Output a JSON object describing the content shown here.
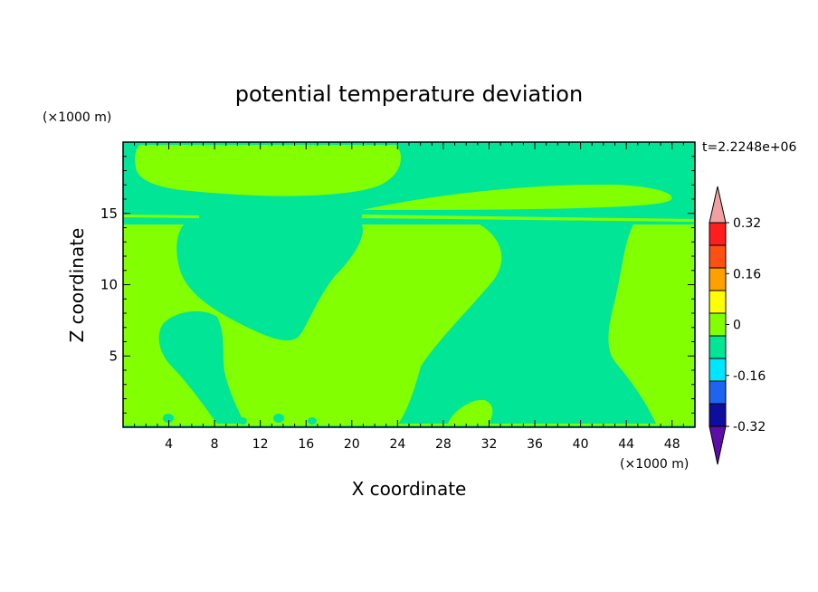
{
  "chart_data": {
    "type": "heatmap",
    "title": "potential temperature deviation",
    "time_label": "t=2.2248e+06",
    "xlabel": "X coordinate",
    "ylabel": "Z coordinate",
    "x_unit": "(×1000 m)",
    "y_unit": "(×1000 m)",
    "xlim": [
      0,
      50
    ],
    "ylim": [
      0,
      20
    ],
    "x_ticks": [
      4,
      8,
      12,
      16,
      20,
      24,
      28,
      32,
      36,
      40,
      44,
      48
    ],
    "y_ticks": [
      5,
      10,
      15
    ],
    "colorbar": {
      "levels": [
        -0.4,
        -0.32,
        -0.24,
        -0.16,
        -0.08,
        0,
        0.08,
        0.16,
        0.24,
        0.32,
        0.4
      ],
      "colors": [
        "#5b0fa8",
        "#0d0d9e",
        "#1e64f0",
        "#00e6ff",
        "#00e696",
        "#82ff00",
        "#ffff00",
        "#ffa000",
        "#ff5014",
        "#ff1e1e",
        "#f0a0a0"
      ],
      "tick_labels": [
        "0.32",
        "0.16",
        "0",
        "-0.16",
        "-0.32"
      ],
      "tick_values": [
        0.32,
        0.16,
        0,
        -0.16,
        -0.32
      ],
      "extend": "both"
    },
    "background_value_range": [
      -0.08,
      0
    ],
    "regions": [
      {
        "name": "upper-left positive band",
        "range": [
          0,
          0.08
        ],
        "x_extent": [
          1.5,
          24
        ],
        "z_extent": [
          16,
          19.6
        ]
      },
      {
        "name": "central positive layer",
        "range": [
          0,
          0.08
        ],
        "x_extent": [
          0,
          50
        ],
        "z_extent": [
          0,
          14.3
        ]
      },
      {
        "name": "right elongated positive band",
        "range": [
          0,
          0.08
        ],
        "x_extent": [
          21,
          48.5
        ],
        "z_extent": [
          14.6,
          17
        ]
      },
      {
        "name": "left negative plume",
        "range": [
          -0.08,
          0
        ],
        "x_extent": [
          5,
          21.5
        ],
        "z_extent": [
          6.1,
          14
        ]
      },
      {
        "name": "right negative plume",
        "range": [
          -0.08,
          0
        ],
        "x_extent": [
          23.5,
          48.5
        ],
        "z_extent": [
          0.4,
          14.3
        ]
      },
      {
        "name": "lower-left negative blob",
        "range": [
          -0.08,
          0
        ],
        "x_extent": [
          3,
          11
        ],
        "z_extent": [
          0.3,
          8
        ]
      }
    ]
  }
}
